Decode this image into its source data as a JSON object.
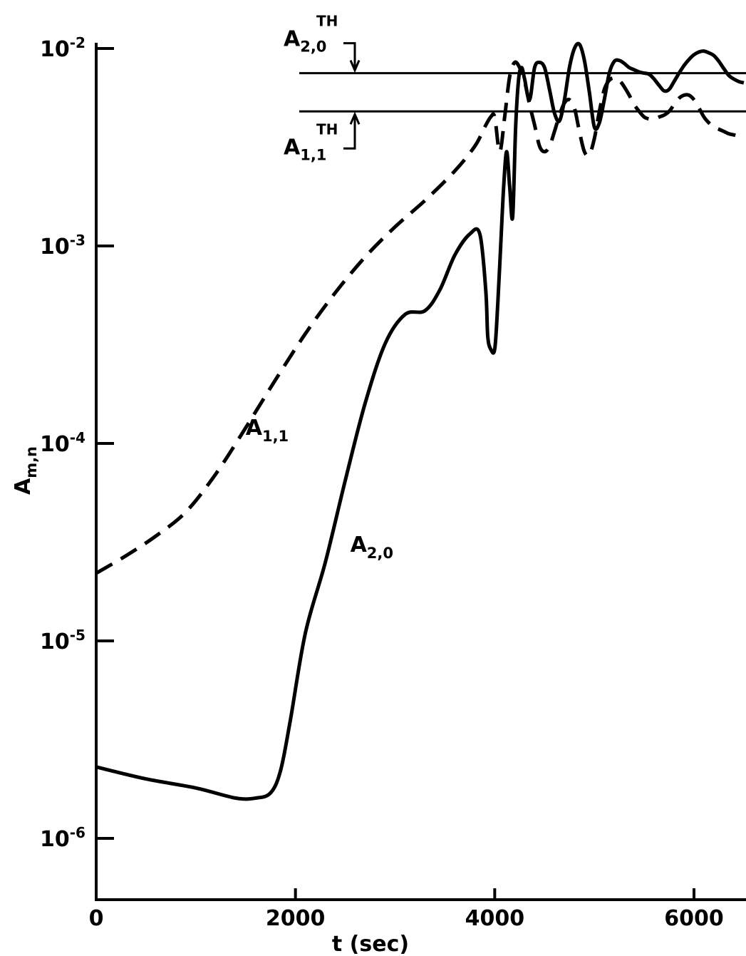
{
  "chart_data": {
    "type": "line",
    "title": "",
    "xlabel": "t (sec)",
    "ylabel": {
      "base": "A",
      "sub": "m,n"
    },
    "xlim": [
      0,
      6500
    ],
    "ylim": [
      5e-07,
      0.012
    ],
    "yscale": "log",
    "grid": false,
    "x_ticks": [
      {
        "value": 0,
        "label": "0"
      },
      {
        "value": 2000,
        "label": "2000"
      },
      {
        "value": 4000,
        "label": "4000"
      },
      {
        "value": 6000,
        "label": "6000"
      }
    ],
    "y_ticks": [
      {
        "value": 1e-06,
        "mantissa": "10",
        "exp": "-6"
      },
      {
        "value": 1e-05,
        "mantissa": "10",
        "exp": "-5"
      },
      {
        "value": 0.0001,
        "mantissa": "10",
        "exp": "-4"
      },
      {
        "value": 0.001,
        "mantissa": "10",
        "exp": "-3"
      },
      {
        "value": 0.01,
        "mantissa": "10",
        "exp": "-2"
      }
    ],
    "series": [
      {
        "label": {
          "base": "A",
          "sub": "1,1"
        },
        "style": "dashed",
        "x": [
          0,
          300,
          600,
          900,
          1200,
          1500,
          1800,
          2100,
          2400,
          2700,
          3000,
          3300,
          3600,
          3800,
          3900,
          3960,
          4000,
          4050,
          4100,
          4150,
          4200,
          4250,
          4300,
          4350,
          4400,
          4450,
          4500,
          4550,
          4600,
          4650,
          4700,
          4750,
          4800,
          4850,
          4900,
          4950,
          5000,
          5050,
          5100,
          5150,
          5200,
          5250,
          5300,
          5350,
          5400,
          5450,
          5500,
          5550,
          5600,
          5650,
          5700,
          5750,
          5800,
          5850,
          5900,
          5950,
          6000,
          6050,
          6100,
          6150,
          6200,
          6250,
          6300,
          6350,
          6400,
          6450,
          6500
        ],
        "y": [
          2.2e-05,
          2.7e-05,
          3.4e-05,
          4.5e-05,
          7e-05,
          0.00012,
          0.00021,
          0.00036,
          0.00058,
          0.00088,
          0.00125,
          0.0017,
          0.0024,
          0.0032,
          0.004,
          0.0045,
          0.0045,
          0.003,
          0.0045,
          0.0072,
          0.0085,
          0.008,
          0.0068,
          0.0052,
          0.0041,
          0.0032,
          0.003,
          0.0032,
          0.0038,
          0.0046,
          0.0053,
          0.0055,
          0.005,
          0.0038,
          0.003,
          0.0029,
          0.0035,
          0.0048,
          0.0062,
          0.0069,
          0.0071,
          0.0069,
          0.0064,
          0.0058,
          0.0052,
          0.0048,
          0.0045,
          0.0044,
          0.0044,
          0.0045,
          0.0046,
          0.0048,
          0.0052,
          0.0056,
          0.0058,
          0.0058,
          0.0055,
          0.005,
          0.0045,
          0.0042,
          0.004,
          0.0039,
          0.0038,
          0.0037,
          0.00365,
          0.0036,
          0.0036
        ]
      },
      {
        "label": {
          "base": "A",
          "sub": "2,0"
        },
        "style": "solid",
        "x": [
          0,
          500,
          1000,
          1400,
          1600,
          1750,
          1850,
          1950,
          2100,
          2300,
          2500,
          2700,
          2900,
          3100,
          3300,
          3450,
          3600,
          3750,
          3850,
          3910,
          3930,
          3960,
          4000,
          4030,
          4060,
          4090,
          4120,
          4150,
          4180,
          4210,
          4240,
          4270,
          4300,
          4350,
          4400,
          4450,
          4500,
          4550,
          4600,
          4650,
          4700,
          4750,
          4800,
          4850,
          4900,
          4950,
          5000,
          5050,
          5100,
          5150,
          5200,
          5250,
          5300,
          5350,
          5400,
          5450,
          5500,
          5550,
          5600,
          5650,
          5700,
          5750,
          5800,
          5850,
          5900,
          5950,
          6000,
          6050,
          6100,
          6150,
          6200,
          6250,
          6300,
          6350,
          6400,
          6450,
          6500
        ],
        "y": [
          2.3e-06,
          2e-06,
          1.8e-06,
          1.6e-06,
          1.6e-06,
          1.7e-06,
          2.2e-06,
          4e-06,
          1.1e-05,
          2.5e-05,
          6.5e-05,
          0.00016,
          0.00032,
          0.00045,
          0.00047,
          0.0006,
          0.0009,
          0.00115,
          0.00115,
          0.0006,
          0.00035,
          0.0003,
          0.0003,
          0.0005,
          0.001,
          0.002,
          0.003,
          0.002,
          0.0014,
          0.004,
          0.007,
          0.008,
          0.007,
          0.0055,
          0.008,
          0.0085,
          0.008,
          0.0062,
          0.0047,
          0.0043,
          0.0055,
          0.008,
          0.01,
          0.0105,
          0.0087,
          0.006,
          0.004,
          0.0042,
          0.0055,
          0.0075,
          0.0086,
          0.0087,
          0.0084,
          0.008,
          0.0078,
          0.0076,
          0.0075,
          0.0074,
          0.007,
          0.0065,
          0.0061,
          0.0062,
          0.0068,
          0.0075,
          0.0082,
          0.0088,
          0.0093,
          0.0096,
          0.0097,
          0.0095,
          0.0092,
          0.0086,
          0.0079,
          0.0073,
          0.007,
          0.0068,
          0.0067
        ]
      }
    ],
    "thresholds": [
      {
        "value": 0.0075,
        "label": {
          "base": "A",
          "sub": "2,0",
          "sup": "TH"
        }
      },
      {
        "value": 0.0048,
        "label": {
          "base": "A",
          "sub": "1,1",
          "sup": "TH"
        }
      }
    ]
  }
}
